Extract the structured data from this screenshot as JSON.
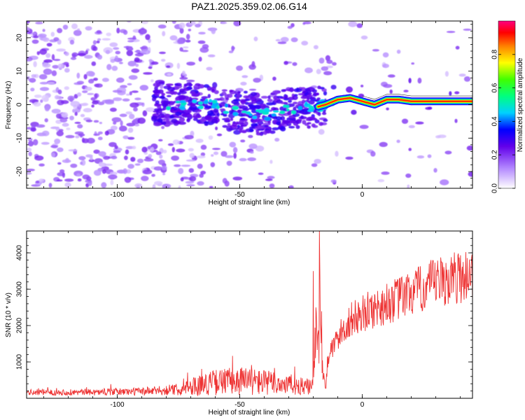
{
  "title": "PAZ1.2025.359.02.06.G14",
  "chart_data": [
    {
      "type": "heatmap",
      "xlabel": "Height of straight line (km)",
      "ylabel": "Frequency (Hz)",
      "xlim": [
        -137,
        45
      ],
      "ylim": [
        -25,
        25
      ],
      "xticks": [
        -100,
        -50,
        0
      ],
      "yticks": [
        -20,
        -10,
        0,
        10,
        20
      ],
      "colorbar": {
        "label": "Normalized spectral amplitude",
        "range": [
          0,
          1
        ],
        "ticks": [
          0.0,
          0.2,
          0.4,
          0.6,
          0.8
        ]
      },
      "dominant_track": [
        {
          "x": -80,
          "y": 0
        },
        {
          "x": -70,
          "y": 0.5
        },
        {
          "x": -60,
          "y": -0.5
        },
        {
          "x": -50,
          "y": -2
        },
        {
          "x": -40,
          "y": -3
        },
        {
          "x": -30,
          "y": -1
        },
        {
          "x": -20,
          "y": -1
        },
        {
          "x": -15,
          "y": 0
        },
        {
          "x": -10,
          "y": 1.5
        },
        {
          "x": -5,
          "y": 2
        },
        {
          "x": 0,
          "y": 1
        },
        {
          "x": 5,
          "y": 0
        },
        {
          "x": 10,
          "y": 1.5
        },
        {
          "x": 15,
          "y": 1.5
        },
        {
          "x": 20,
          "y": 1
        },
        {
          "x": 30,
          "y": 1
        },
        {
          "x": 45,
          "y": 1
        }
      ]
    },
    {
      "type": "line",
      "xlabel": "Height of straight line (km)",
      "ylabel": "SNR (10 * v/v)",
      "xlim": [
        -137,
        45
      ],
      "ylim": [
        0,
        4600
      ],
      "xticks": [
        -100,
        -50,
        0
      ],
      "yticks": [
        1000,
        2000,
        3000,
        4000
      ],
      "color": "#ee3333",
      "envelope": [
        {
          "x": -137,
          "y": 150
        },
        {
          "x": -110,
          "y": 160
        },
        {
          "x": -90,
          "y": 200
        },
        {
          "x": -80,
          "y": 250
        },
        {
          "x": -75,
          "y": 300
        },
        {
          "x": -70,
          "y": 450
        },
        {
          "x": -65,
          "y": 550
        },
        {
          "x": -60,
          "y": 650
        },
        {
          "x": -55,
          "y": 700
        },
        {
          "x": -50,
          "y": 750
        },
        {
          "x": -45,
          "y": 700
        },
        {
          "x": -40,
          "y": 650
        },
        {
          "x": -35,
          "y": 600
        },
        {
          "x": -30,
          "y": 550
        },
        {
          "x": -25,
          "y": 450
        },
        {
          "x": -20,
          "y": 400
        },
        {
          "x": -19,
          "y": 2000
        },
        {
          "x": -18,
          "y": 3000
        },
        {
          "x": -17,
          "y": 2600
        },
        {
          "x": -16,
          "y": 800
        },
        {
          "x": -15,
          "y": 400
        },
        {
          "x": -14,
          "y": 1200
        },
        {
          "x": -10,
          "y": 1800
        },
        {
          "x": -5,
          "y": 2300
        },
        {
          "x": 0,
          "y": 2500
        },
        {
          "x": 10,
          "y": 2800
        },
        {
          "x": 20,
          "y": 3100
        },
        {
          "x": 30,
          "y": 3400
        },
        {
          "x": 40,
          "y": 3600
        },
        {
          "x": 45,
          "y": 3700
        }
      ],
      "peaks": [
        {
          "x": -20,
          "y": 3500
        },
        {
          "x": -17.5,
          "y": 4650
        },
        {
          "x": -19,
          "y": 2500
        }
      ]
    }
  ]
}
